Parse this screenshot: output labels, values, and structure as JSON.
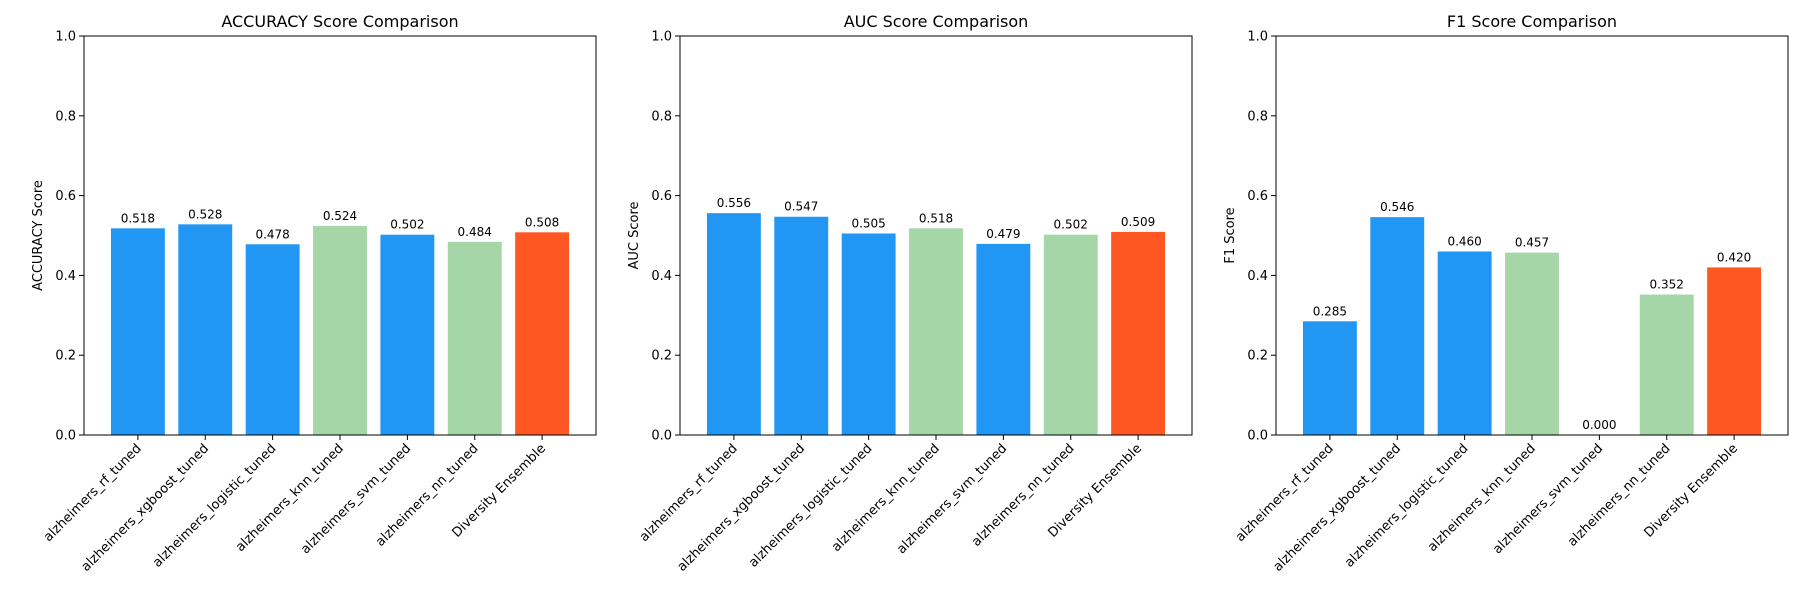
{
  "colors": {
    "blue": "#2196F3",
    "green": "#A5D6A7",
    "orange": "#FF5722"
  },
  "chart_data": [
    {
      "type": "bar",
      "title": "ACCURACY Score Comparison",
      "xlabel": "",
      "ylabel": "ACCURACY Score",
      "ylim": [
        0,
        1
      ],
      "yticks": [
        "0.0",
        "0.2",
        "0.4",
        "0.6",
        "0.8",
        "1.0"
      ],
      "categories": [
        "alzheimers_rf_tuned",
        "alzheimers_xgboost_tuned",
        "alzheimers_logistic_tuned",
        "alzheimers_knn_tuned",
        "alzheimers_svm_tuned",
        "alzheimers_nn_tuned",
        "Diversity Ensemble"
      ],
      "values": [
        0.518,
        0.528,
        0.478,
        0.524,
        0.502,
        0.484,
        0.508
      ],
      "value_labels": [
        "0.518",
        "0.528",
        "0.478",
        "0.524",
        "0.502",
        "0.484",
        "0.508"
      ],
      "bar_colors": [
        "blue",
        "blue",
        "blue",
        "green",
        "blue",
        "green",
        "orange"
      ],
      "grid": false
    },
    {
      "type": "bar",
      "title": "AUC Score Comparison",
      "xlabel": "",
      "ylabel": "AUC Score",
      "ylim": [
        0,
        1
      ],
      "yticks": [
        "0.0",
        "0.2",
        "0.4",
        "0.6",
        "0.8",
        "1.0"
      ],
      "categories": [
        "alzheimers_rf_tuned",
        "alzheimers_xgboost_tuned",
        "alzheimers_logistic_tuned",
        "alzheimers_knn_tuned",
        "alzheimers_svm_tuned",
        "alzheimers_nn_tuned",
        "Diversity Ensemble"
      ],
      "values": [
        0.556,
        0.547,
        0.505,
        0.518,
        0.479,
        0.502,
        0.509
      ],
      "value_labels": [
        "0.556",
        "0.547",
        "0.505",
        "0.518",
        "0.479",
        "0.502",
        "0.509"
      ],
      "bar_colors": [
        "blue",
        "blue",
        "blue",
        "green",
        "blue",
        "green",
        "orange"
      ],
      "grid": false
    },
    {
      "type": "bar",
      "title": "F1 Score Comparison",
      "xlabel": "",
      "ylabel": "F1 Score",
      "ylim": [
        0,
        1
      ],
      "yticks": [
        "0.0",
        "0.2",
        "0.4",
        "0.6",
        "0.8",
        "1.0"
      ],
      "categories": [
        "alzheimers_rf_tuned",
        "alzheimers_xgboost_tuned",
        "alzheimers_logistic_tuned",
        "alzheimers_knn_tuned",
        "alzheimers_svm_tuned",
        "alzheimers_nn_tuned",
        "Diversity Ensemble"
      ],
      "values": [
        0.285,
        0.546,
        0.46,
        0.457,
        0.0,
        0.352,
        0.42
      ],
      "value_labels": [
        "0.285",
        "0.546",
        "0.460",
        "0.457",
        "0.000",
        "0.352",
        "0.420"
      ],
      "bar_colors": [
        "blue",
        "blue",
        "blue",
        "green",
        "blue",
        "green",
        "orange"
      ],
      "grid": false
    }
  ]
}
